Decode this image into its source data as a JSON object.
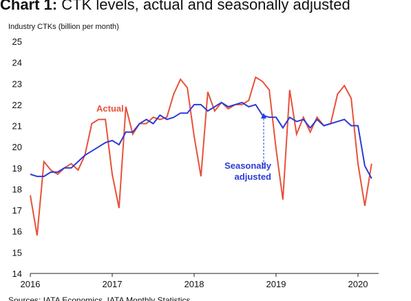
{
  "chart_data": {
    "type": "line",
    "title_label": "Chart 1:",
    "title": "CTK levels, actual and seasonally adjusted",
    "y_label": "Industry CTKs (billion per month)",
    "source": "Sources: IATA Economics, IATA Monthly Statistics",
    "categories": [
      "2016",
      null,
      null,
      null,
      null,
      null,
      null,
      null,
      null,
      null,
      null,
      null,
      "2017",
      null,
      null,
      null,
      null,
      null,
      null,
      null,
      null,
      null,
      null,
      null,
      "2018",
      null,
      null,
      null,
      null,
      null,
      null,
      null,
      null,
      null,
      null,
      null,
      "2019",
      null,
      null,
      null,
      null,
      null,
      null,
      null,
      null,
      null,
      null,
      null,
      "2020",
      null,
      null
    ],
    "series": [
      {
        "name": "Actual",
        "color": "#e8503a",
        "values": [
          17.7,
          15.8,
          19.3,
          18.9,
          18.7,
          19.0,
          19.2,
          18.9,
          19.6,
          21.1,
          21.3,
          21.3,
          18.7,
          17.1,
          21.9,
          20.6,
          21.1,
          21.1,
          21.4,
          21.3,
          21.4,
          22.5,
          23.2,
          22.8,
          20.5,
          18.6,
          22.6,
          21.7,
          22.1,
          21.8,
          22.0,
          22.0,
          22.2,
          23.3,
          23.1,
          22.7,
          19.9,
          17.5,
          22.7,
          20.6,
          21.4,
          20.7,
          21.4,
          21.0,
          21.1,
          22.5,
          22.9,
          22.3,
          19.2,
          17.2,
          19.2
        ]
      },
      {
        "name": "Seasonally adjusted",
        "color": "#2b3bd6",
        "values": [
          18.7,
          18.6,
          18.6,
          18.8,
          18.8,
          19.0,
          19.0,
          19.3,
          19.6,
          19.8,
          20.0,
          20.2,
          20.3,
          20.1,
          20.7,
          20.7,
          21.1,
          21.3,
          21.1,
          21.5,
          21.3,
          21.4,
          21.6,
          21.6,
          22.0,
          22.0,
          21.7,
          21.9,
          22.1,
          21.9,
          22.0,
          22.1,
          21.9,
          22.0,
          21.5,
          21.4,
          21.4,
          20.9,
          21.4,
          21.2,
          21.3,
          20.9,
          21.3,
          21.0,
          21.1,
          21.2,
          21.3,
          21.0,
          21.0,
          19.1,
          18.5
        ]
      }
    ],
    "ylim": [
      14,
      25
    ],
    "yticks": [
      14,
      15,
      16,
      17,
      18,
      19,
      20,
      21,
      22,
      23,
      24,
      25
    ]
  }
}
